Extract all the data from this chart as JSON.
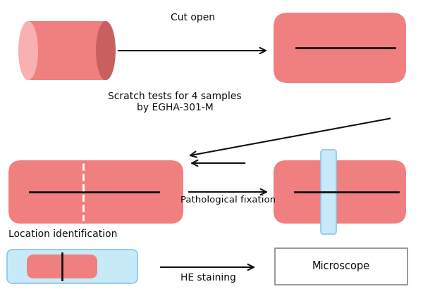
{
  "bg_color": "#ffffff",
  "salmon": "#f08080",
  "salmon_light": "#f8b0b0",
  "salmon_dark": "#c86060",
  "light_blue": "#c8eaf8",
  "line_color": "#111111",
  "text_color": "#111111",
  "labels": {
    "cut_open": "Cut open",
    "scratch": "Scratch tests for 4 samples\nby EGHA-301-M",
    "pathological": "Pathological fixation",
    "location": "Location identification",
    "he_staining": "HE staining",
    "microscope": "Microscope"
  },
  "figsize": [
    6.0,
    4.21
  ],
  "dpi": 100
}
